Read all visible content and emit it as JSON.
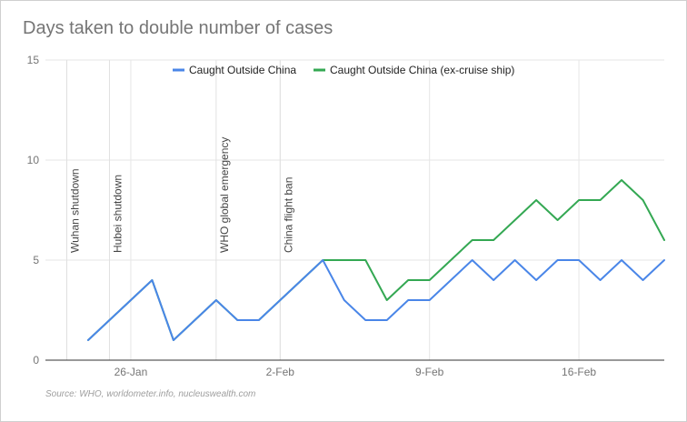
{
  "chart_data": {
    "type": "line",
    "title": "Days taken to double number of cases",
    "source": "Source: WHO, worldometer.info, nucleuswealth.com",
    "xlabel": "",
    "ylabel": "",
    "ylim": [
      0,
      15
    ],
    "yticks": [
      "0",
      "5",
      "10",
      "15"
    ],
    "x_ticks": [
      {
        "date": "2020-01-26",
        "label": "26-Jan"
      },
      {
        "date": "2020-02-02",
        "label": "2-Feb"
      },
      {
        "date": "2020-02-09",
        "label": "9-Feb"
      },
      {
        "date": "2020-02-16",
        "label": "16-Feb"
      }
    ],
    "xlim": [
      "2020-01-22",
      "2020-02-20"
    ],
    "grid": true,
    "legend_position": "top",
    "x": [
      "2020-01-24",
      "2020-01-25",
      "2020-01-26",
      "2020-01-27",
      "2020-01-28",
      "2020-01-29",
      "2020-01-30",
      "2020-01-31",
      "2020-02-01",
      "2020-02-02",
      "2020-02-03",
      "2020-02-04",
      "2020-02-05",
      "2020-02-06",
      "2020-02-07",
      "2020-02-08",
      "2020-02-09",
      "2020-02-10",
      "2020-02-11",
      "2020-02-12",
      "2020-02-13",
      "2020-02-14",
      "2020-02-15",
      "2020-02-16",
      "2020-02-17",
      "2020-02-18",
      "2020-02-19",
      "2020-02-20"
    ],
    "series": [
      {
        "name": "Caught Outside China",
        "color": "#4a86e8",
        "values": [
          1,
          2,
          3,
          4,
          1,
          2,
          3,
          2,
          2,
          3,
          4,
          5,
          3,
          2,
          2,
          3,
          3,
          4,
          5,
          4,
          5,
          4,
          5,
          5,
          4,
          5,
          4,
          5
        ]
      },
      {
        "name": "Caught Outside China (ex-cruise ship)",
        "color": "#34a853",
        "values": [
          1,
          2,
          3,
          4,
          1,
          2,
          3,
          2,
          2,
          3,
          4,
          5,
          5,
          5,
          3,
          4,
          4,
          5,
          6,
          6,
          7,
          8,
          7,
          8,
          8,
          9,
          8,
          6
        ]
      }
    ],
    "annotations": [
      {
        "date": "2020-01-23",
        "label": "Wuhan shutdown"
      },
      {
        "date": "2020-01-25",
        "label": "Hubei shutdown"
      },
      {
        "date": "2020-01-30",
        "label": "WHO global emergency"
      },
      {
        "date": "2020-02-02",
        "label": "China flight ban"
      }
    ]
  }
}
